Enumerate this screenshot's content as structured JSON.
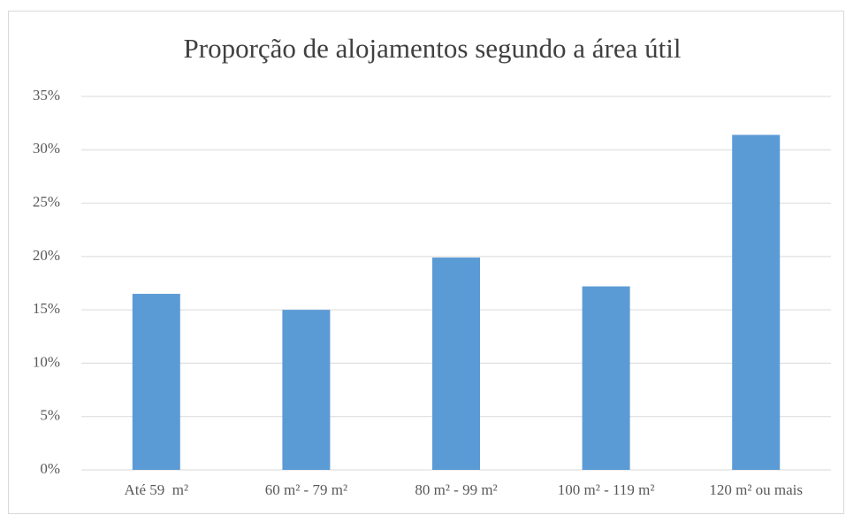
{
  "chart_data": {
    "type": "bar",
    "title": "Proporção de alojamentos segundo a área útil",
    "categories": [
      "Até 59  m²",
      "60 m² - 79 m²",
      "80 m² - 99 m²",
      "100 m² - 119 m²",
      "120 m² ou mais"
    ],
    "values": [
      16.5,
      15.0,
      19.9,
      17.2,
      31.4
    ],
    "color": "#5b9bd5",
    "ylim": [
      0,
      35
    ],
    "yticks": [
      {
        "value": 0,
        "label": "0%"
      },
      {
        "value": 5,
        "label": "5%"
      },
      {
        "value": 10,
        "label": "10%"
      },
      {
        "value": 15,
        "label": "15%"
      },
      {
        "value": 20,
        "label": "20%"
      },
      {
        "value": 25,
        "label": "25%"
      },
      {
        "value": 30,
        "label": "30%"
      },
      {
        "value": 35,
        "label": "35%"
      }
    ],
    "grid": true
  }
}
